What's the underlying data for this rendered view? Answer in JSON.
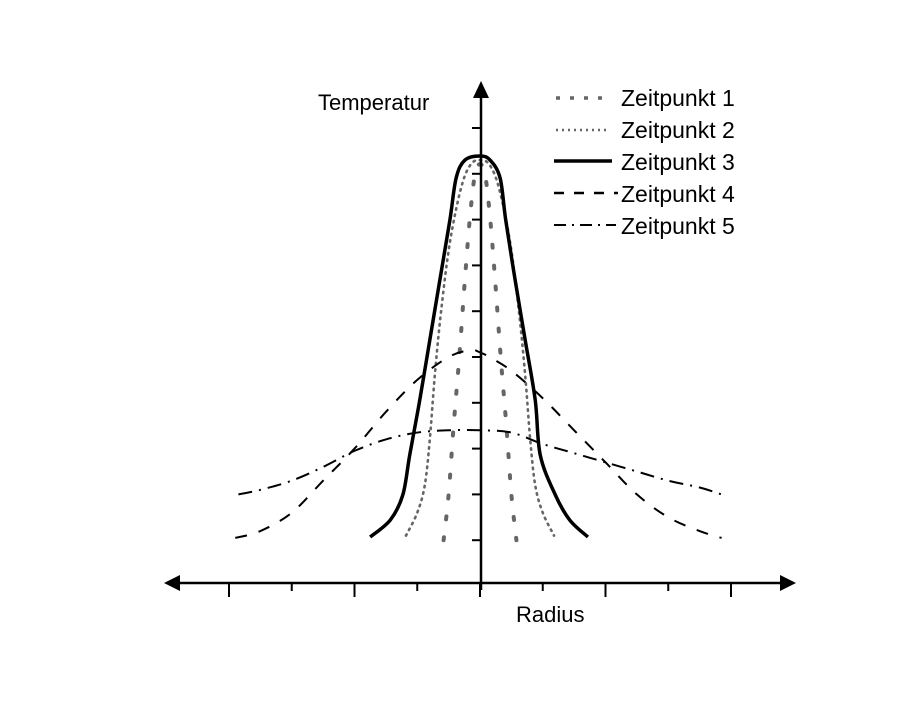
{
  "chart_data": {
    "type": "line",
    "title": "",
    "xlabel": "Radius",
    "ylabel": "Temperatur",
    "xlim": [
      -5,
      5
    ],
    "ylim": [
      0,
      11
    ],
    "x_ticks_major": [
      -4,
      -2,
      0,
      2,
      4
    ],
    "x_ticks_minor": [
      -3,
      -1,
      1,
      3
    ],
    "y_ticks": [
      1,
      2,
      3,
      4,
      5,
      6,
      7,
      8,
      9,
      10
    ],
    "tick_labels_shown": false,
    "grid": false,
    "legend_position": "top-right",
    "series": [
      {
        "name": "Zeitpunkt 1",
        "style": "sparse-dot",
        "color": "#666666",
        "x": [
          -0.58,
          -0.5,
          -0.42,
          -0.33,
          -0.24,
          -0.15,
          -0.06,
          0.06,
          0.15,
          0.24,
          0.33,
          0.42,
          0.5,
          0.58
        ],
        "y": [
          1.0,
          2.0,
          3.5,
          5.0,
          6.7,
          8.2,
          9.1,
          9.1,
          8.2,
          6.7,
          5.0,
          3.5,
          2.0,
          1.0
        ]
      },
      {
        "name": "Zeitpunkt 2",
        "style": "dotted",
        "color": "#666666",
        "x": [
          -1.18,
          -1.0,
          -0.88,
          -0.8,
          -0.72,
          -0.62,
          -0.48,
          -0.3,
          -0.15,
          0.0,
          0.15,
          0.3,
          0.48,
          0.62,
          0.72,
          0.8,
          0.88,
          1.0,
          1.18
        ],
        "y": [
          1.1,
          1.6,
          2.2,
          3.2,
          4.6,
          6.0,
          7.5,
          8.7,
          9.2,
          9.3,
          9.2,
          8.7,
          7.5,
          6.0,
          4.6,
          3.2,
          2.2,
          1.6,
          1.1
        ]
      },
      {
        "name": "Zeitpunkt 3",
        "style": "solid",
        "color": "#000000",
        "x": [
          -1.75,
          -1.43,
          -1.23,
          -1.12,
          -0.96,
          -0.8,
          -0.64,
          -0.48,
          -0.38,
          -0.24,
          0.0,
          0.16,
          0.32,
          0.41,
          0.56,
          0.72,
          0.88,
          0.96,
          1.2,
          1.43,
          1.72
        ],
        "y": [
          1.07,
          1.44,
          1.99,
          2.86,
          4.06,
          5.37,
          6.68,
          7.99,
          8.91,
          9.3,
          9.39,
          9.3,
          8.91,
          7.99,
          6.68,
          5.37,
          4.06,
          2.86,
          1.99,
          1.44,
          1.07
        ]
      },
      {
        "name": "Zeitpunkt 4",
        "style": "dashed",
        "color": "#000000",
        "x": [
          -3.9,
          -3.5,
          -3.0,
          -2.5,
          -2.0,
          -1.5,
          -1.0,
          -0.5,
          -0.15,
          0.0,
          0.15,
          0.5,
          1.0,
          1.5,
          2.0,
          2.5,
          3.0,
          3.5,
          3.85
        ],
        "y": [
          1.05,
          1.2,
          1.6,
          2.3,
          3.0,
          3.8,
          4.5,
          5.0,
          5.15,
          5.1,
          5.0,
          4.7,
          4.1,
          3.4,
          2.7,
          2.0,
          1.5,
          1.2,
          1.05
        ]
      },
      {
        "name": "Zeitpunkt 5",
        "style": "dash-dot",
        "color": "#000000",
        "x": [
          -3.85,
          -3.5,
          -3.0,
          -2.5,
          -2.0,
          -1.5,
          -1.0,
          -0.5,
          0.0,
          0.5,
          1.0,
          1.5,
          2.0,
          2.5,
          3.0,
          3.5,
          3.85
        ],
        "y": [
          2.0,
          2.1,
          2.3,
          2.6,
          2.95,
          3.2,
          3.35,
          3.4,
          3.4,
          3.35,
          3.1,
          2.9,
          2.7,
          2.5,
          2.3,
          2.15,
          2.0
        ]
      }
    ]
  },
  "legend": {
    "items": [
      {
        "label": "Zeitpunkt 1"
      },
      {
        "label": "Zeitpunkt 2"
      },
      {
        "label": "Zeitpunkt 3"
      },
      {
        "label": "Zeitpunkt 4"
      },
      {
        "label": "Zeitpunkt 5"
      }
    ]
  },
  "axes": {
    "x_label": "Radius",
    "y_label": "Temperatur"
  }
}
